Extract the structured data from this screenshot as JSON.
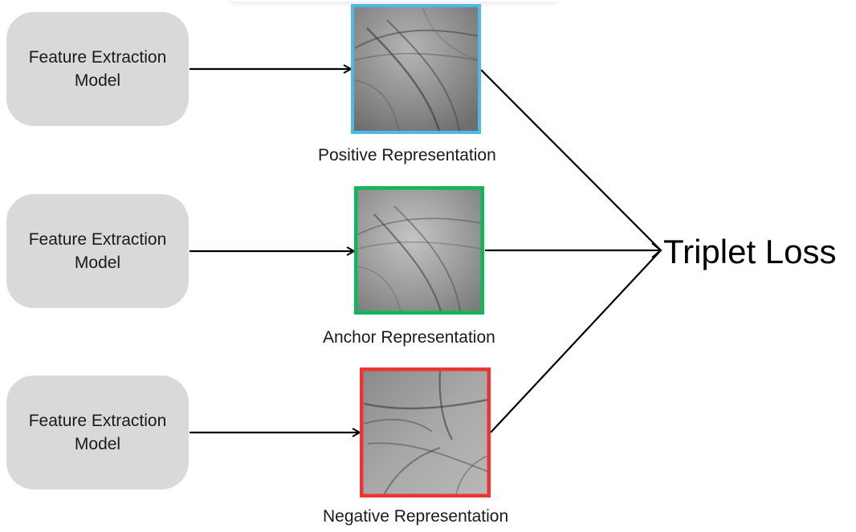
{
  "models": [
    {
      "label": "Feature Extraction\nModel"
    },
    {
      "label": "Feature Extraction\nModel"
    },
    {
      "label": "Feature Extraction\nModel"
    }
  ],
  "representations": [
    {
      "label": "Positive Representation",
      "border_color": "#4fb8e4",
      "image": "palmprint-texture"
    },
    {
      "label": "Anchor Representation",
      "border_color": "#12b65a",
      "image": "palmprint-texture"
    },
    {
      "label": "Negative Representation",
      "border_color": "#ee3333",
      "image": "palmprint-texture"
    }
  ],
  "loss": {
    "label": "Triplet Loss"
  }
}
